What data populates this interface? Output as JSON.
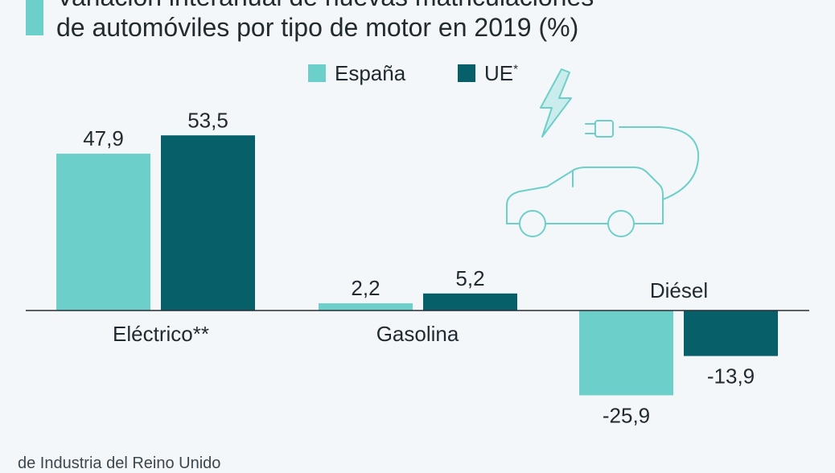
{
  "title": {
    "line1": "Variación interanual de nuevas matriculaciones",
    "line2": "de automóviles por tipo de motor en 2019 (%)"
  },
  "colors": {
    "espana": "#6dcfc9",
    "ue": "#075f6a",
    "axis": "#2a2f33",
    "icon": "#6dcfc9"
  },
  "legend": [
    {
      "label": "España",
      "sup": "",
      "color": "#6dcfc9"
    },
    {
      "label": "UE",
      "sup": "*",
      "color": "#075f6a"
    }
  ],
  "icons": {
    "car": "electric-car-plug-icon",
    "bolt": "lightning-bolt-icon"
  },
  "chart_data": {
    "type": "bar",
    "categories": [
      "Eléctrico**",
      "Gasolina",
      "Diésel"
    ],
    "series": [
      {
        "name": "España",
        "values": [
          47.9,
          2.2,
          -25.9
        ],
        "labels": [
          "47,9",
          "2,2",
          "-25,9"
        ]
      },
      {
        "name": "UE*",
        "values": [
          53.5,
          5.2,
          -13.9
        ],
        "labels": [
          "53,5",
          "5,2",
          "-13,9"
        ]
      }
    ],
    "title": "Variación interanual de nuevas matriculaciones de automóviles por tipo de motor en 2019 (%)",
    "xlabel": "",
    "ylabel": "",
    "grid": false,
    "legend_position": "top"
  },
  "source": "de Industria del Reino Unido"
}
